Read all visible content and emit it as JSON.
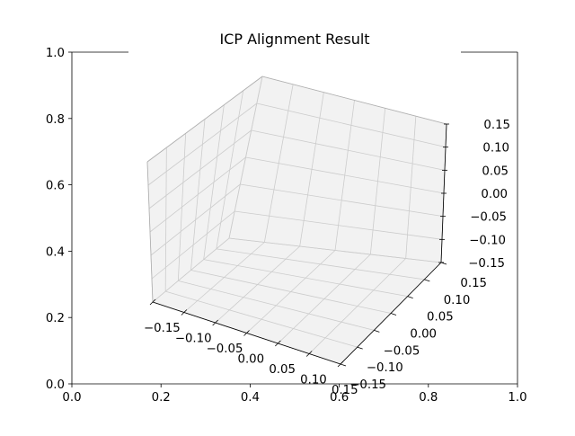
{
  "chart_data": {
    "type": "scatter",
    "projection": "3d",
    "title": "ICP Alignment Result",
    "xlabel": "",
    "ylabel": "",
    "zlabel": "",
    "series": [],
    "grid": true,
    "legend": "none",
    "outer_axes": {
      "xlim": [
        0,
        1
      ],
      "ylim": [
        0,
        1
      ],
      "xticks": [
        "0.0",
        "0.2",
        "0.4",
        "0.6",
        "0.8",
        "1.0"
      ],
      "yticks": [
        "0.0",
        "0.2",
        "0.4",
        "0.6",
        "0.8",
        "1.0"
      ]
    },
    "axes3d": {
      "xlim": [
        -0.15,
        0.15
      ],
      "ylim": [
        -0.15,
        0.15
      ],
      "zlim": [
        -0.15,
        0.15
      ],
      "xticks": [
        "−0.15",
        "−0.10",
        "−0.05",
        "0.00",
        "0.05",
        "0.10",
        "0.15"
      ],
      "yticks": [
        "−0.15",
        "−0.10",
        "−0.05",
        "0.00",
        "0.05",
        "0.10",
        "0.15"
      ],
      "zticks": [
        "−0.15",
        "−0.10",
        "−0.05",
        "0.00",
        "0.05",
        "0.10",
        "0.15"
      ],
      "pane_colors": [
        "#f2f2f2",
        "#f2f2f2",
        "#f2f2f2"
      ],
      "grid_color": "#cccccc",
      "edge_color": "#b0b0b0"
    }
  }
}
